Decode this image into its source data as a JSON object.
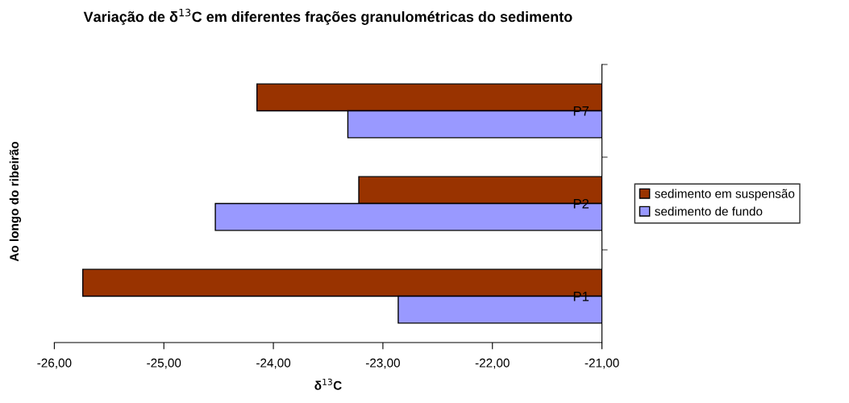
{
  "chart_data": {
    "type": "bar",
    "orientation": "horizontal",
    "title": "Variação de δ$^{13}$C em diferentes frações granulométricas do sedimento",
    "xlabel": "δ$^{13}$C",
    "ylabel": "Ao longo do ribeirão",
    "categories": [
      "P7",
      "P2",
      "P1"
    ],
    "series": [
      {
        "name": "sedimento em suspensão",
        "color": "#993300",
        "values": [
          -24.15,
          -23.22,
          -25.74
        ]
      },
      {
        "name": "sedimento de fundo",
        "color": "#9999ff",
        "values": [
          -23.32,
          -24.53,
          -22.86
        ]
      }
    ],
    "xlim": [
      -26,
      -21
    ],
    "xticks": [
      {
        "value": -26,
        "label": "-26,00"
      },
      {
        "value": -25,
        "label": "-25,00"
      },
      {
        "value": -24,
        "label": "-24,00"
      },
      {
        "value": -23,
        "label": "-23,00"
      },
      {
        "value": -22,
        "label": "-22,00"
      },
      {
        "value": -21,
        "label": "-21,00"
      }
    ],
    "grid": false,
    "legend": "right"
  }
}
